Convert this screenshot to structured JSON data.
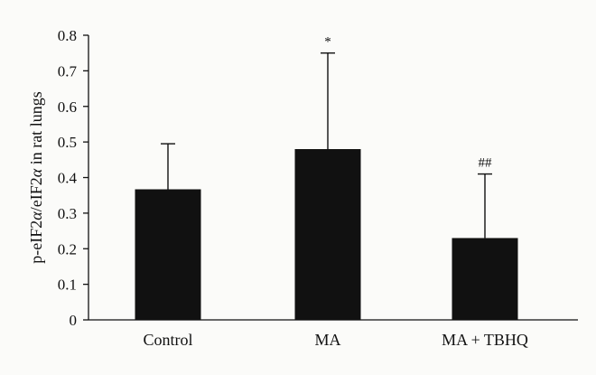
{
  "chart_data": {
    "type": "bar",
    "title": "",
    "xlabel": "",
    "ylabel_parts": [
      {
        "text": "p-eIF2",
        "italic": false
      },
      {
        "text": "α",
        "italic": true
      },
      {
        "text": "/eIF2",
        "italic": false
      },
      {
        "text": "α",
        "italic": true
      },
      {
        "text": " in rat lungs",
        "italic": false
      }
    ],
    "ylim": [
      0,
      0.8
    ],
    "yticks": [
      "0",
      "0.1",
      "0.2",
      "0.3",
      "0.4",
      "0.5",
      "0.6",
      "0.7",
      "0.8"
    ],
    "categories": [
      "Control",
      "MA",
      "MA + TBHQ"
    ],
    "values": [
      0.367,
      0.48,
      0.23
    ],
    "error_upper": [
      0.495,
      0.75,
      0.41
    ],
    "annotations": [
      "",
      "*",
      "##"
    ],
    "bar_color": "#111111",
    "grid": false,
    "legend": "none"
  }
}
